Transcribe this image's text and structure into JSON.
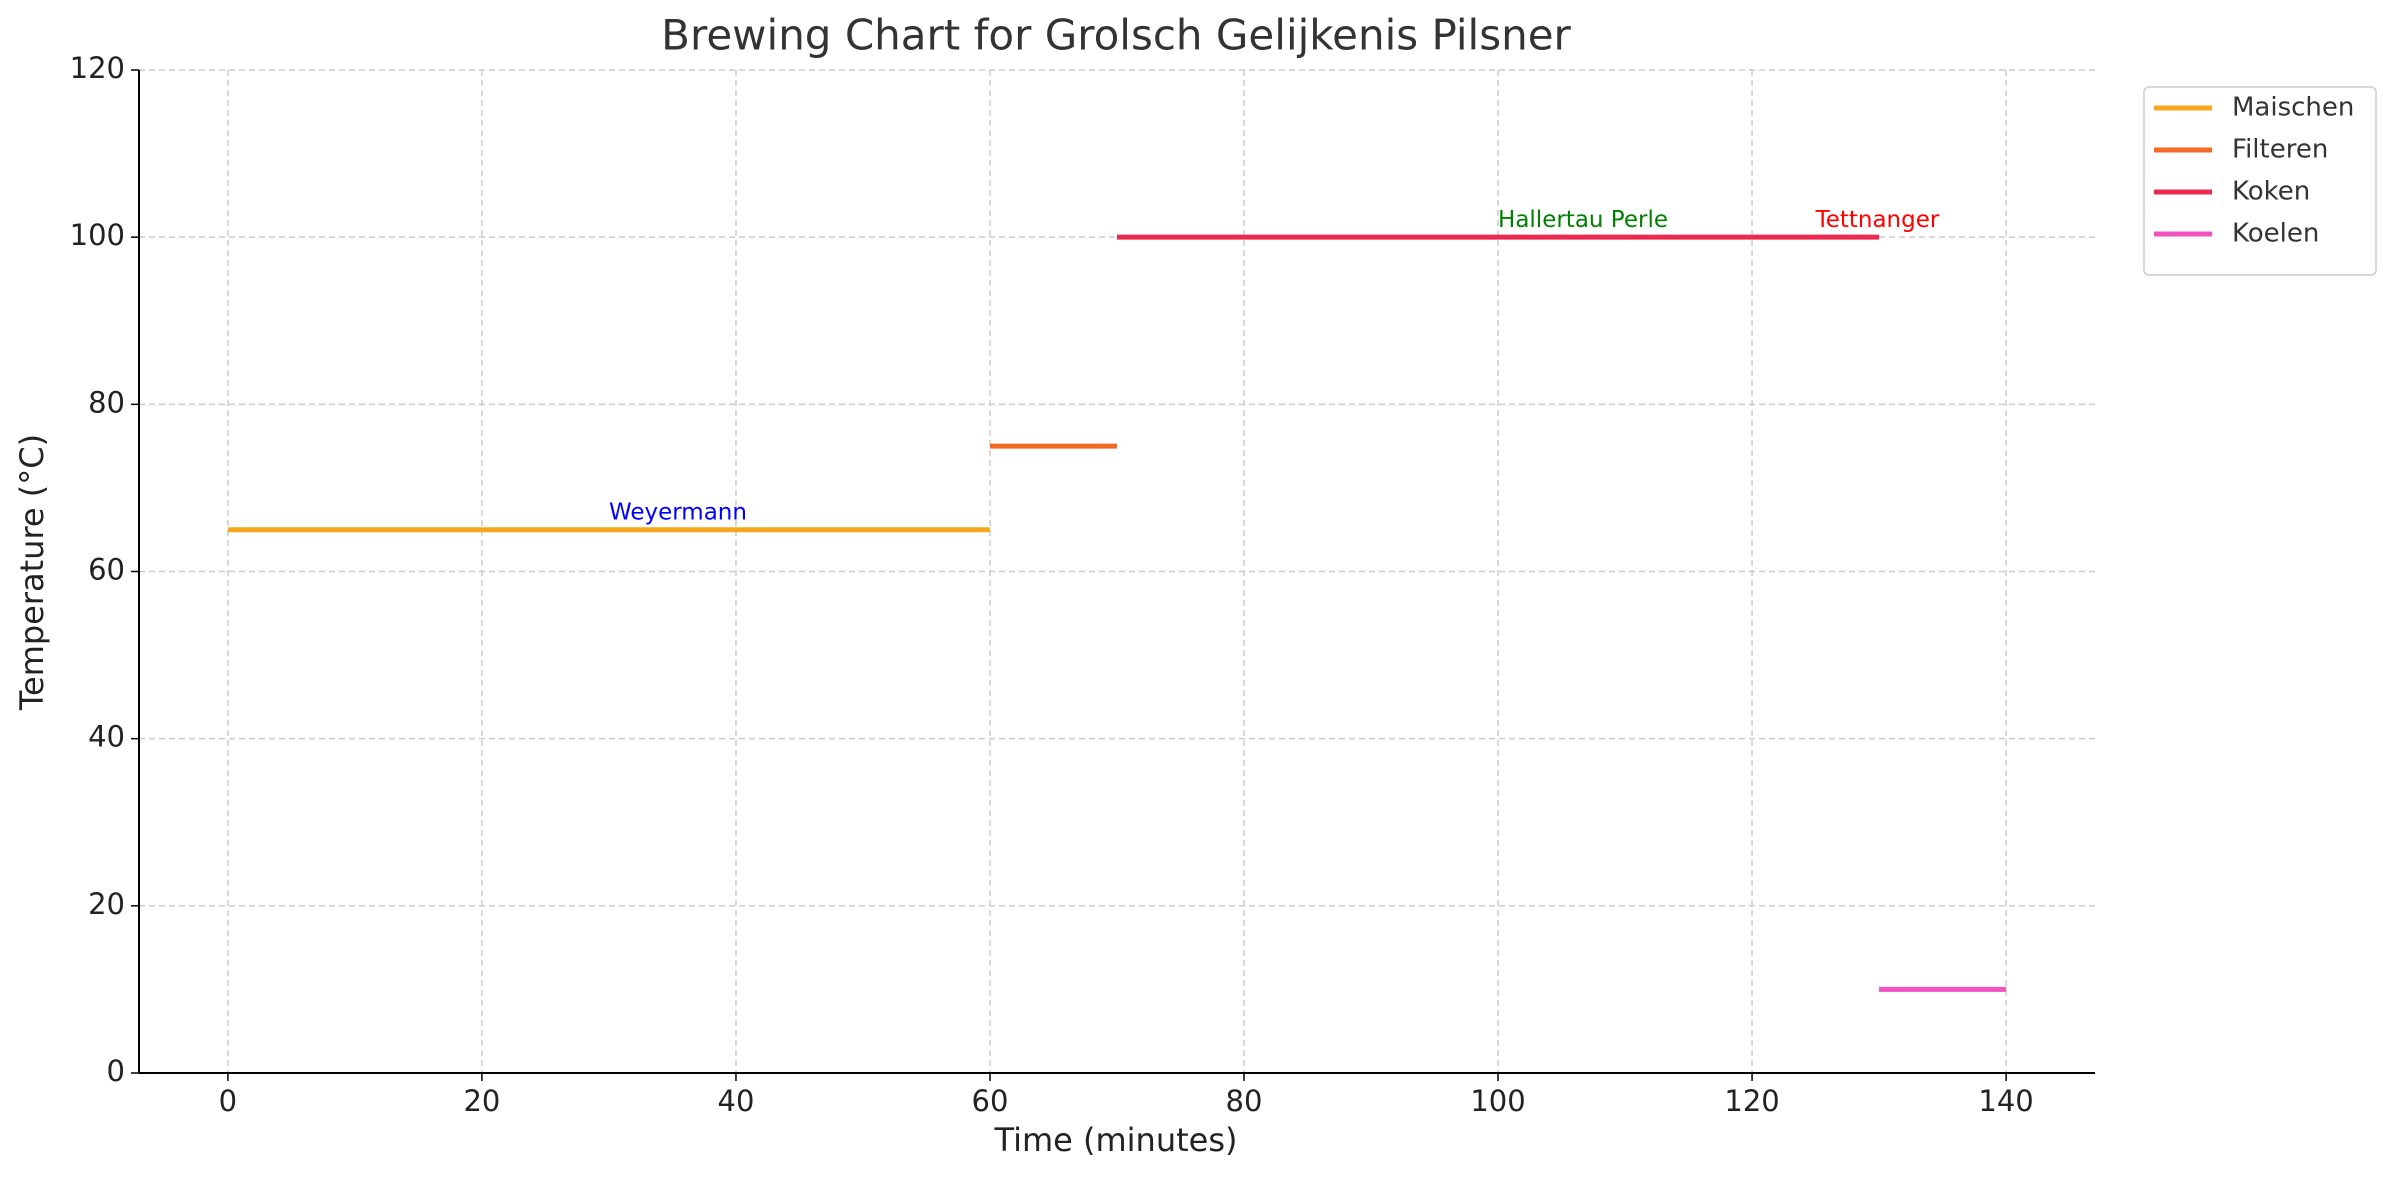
{
  "chart_data": {
    "type": "line",
    "title": "Brewing Chart for Grolsch Gelijkenis Pilsner",
    "xlabel": "Time (minutes)",
    "ylabel": "Temperature (°C)",
    "xlim": [
      -7,
      147
    ],
    "ylim": [
      0,
      120
    ],
    "xticks": [
      0,
      20,
      40,
      60,
      80,
      100,
      120,
      140
    ],
    "yticks": [
      0,
      20,
      40,
      60,
      80,
      100,
      120
    ],
    "grid": true,
    "legend": "outside upper right",
    "series": [
      {
        "name": "Maischen",
        "color": "#f5a81c",
        "x": [
          0,
          60
        ],
        "values": [
          65,
          65
        ]
      },
      {
        "name": "Filteren",
        "color": "#f26a24",
        "x": [
          60,
          70
        ],
        "values": [
          75,
          75
        ]
      },
      {
        "name": "Koken",
        "color": "#ec2a50",
        "x": [
          70,
          130
        ],
        "values": [
          100,
          100
        ]
      },
      {
        "name": "Koelen",
        "color": "#f052c0",
        "x": [
          130,
          140
        ],
        "values": [
          10,
          10
        ]
      }
    ],
    "annotations": [
      {
        "text": "Weyermann",
        "x": 30,
        "y": 67,
        "color": "#0000ff"
      },
      {
        "text": "Hallertau Perle",
        "x": 100,
        "y": 102,
        "color": "#008000"
      },
      {
        "text": "Tettnanger",
        "x": 125,
        "y": 102,
        "color": "#ff0000"
      }
    ]
  }
}
